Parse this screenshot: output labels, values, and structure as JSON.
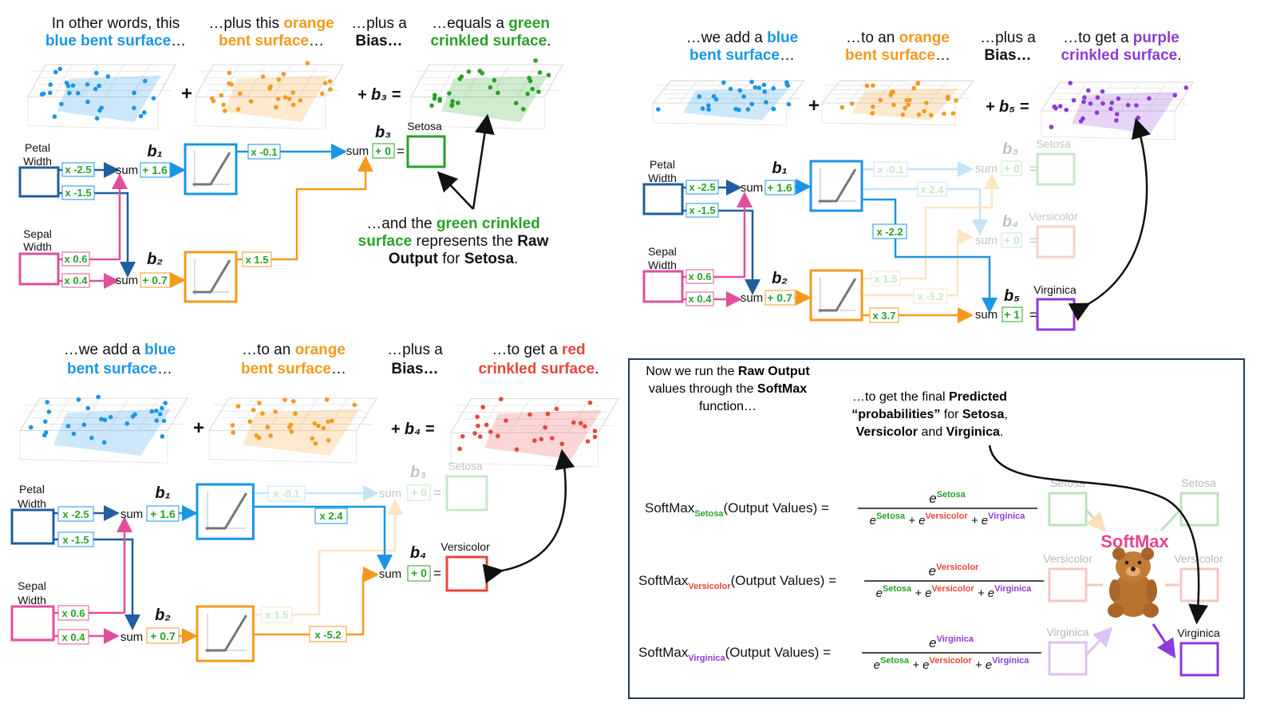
{
  "colors": {
    "blue": "#1a96e6",
    "darkblue": "#1f5fa0",
    "orange": "#f39a1e",
    "pink": "#e0509a",
    "green": "#28a228",
    "red": "#e8463a",
    "purple": "#8e3ad6",
    "softmax": "#e8458c"
  },
  "panel1": {
    "captions": [
      {
        "line1": "In other words, this",
        "line2_color": "blue bent surface",
        "line2_rest": "…"
      },
      {
        "line1_pre": "…plus this ",
        "line1_color": "orange",
        "line2_color": "bent surface",
        "line2_rest": "…"
      },
      {
        "line1": "…plus a",
        "line2": "Bias…"
      },
      {
        "line1_pre": "…equals a ",
        "line1_color": "green",
        "line2_color": "crinkled surface",
        "line2_rest": "."
      }
    ],
    "bias_label": "b₃",
    "output_label": "Setosa",
    "note": {
      "l1_pre": "…and the ",
      "l1_color": "green crinkled",
      "l2_color": "surface",
      "l2_mid": " represents the ",
      "l2_bold": "Raw",
      "l3_bold1": "Output",
      "l3_mid": " for ",
      "l3_bold2": "Setosa",
      "l3_end": "."
    },
    "weights": {
      "pw_top": "x -2.5",
      "pw_bot": "x -1.5",
      "sw_top": "x 0.6",
      "sw_bot": "x 0.4",
      "b1": "+ 1.6",
      "b2": "+ 0.7",
      "top_out": "x -0.1",
      "bot_out": "x 1.5",
      "b3": "+ 0"
    }
  },
  "panel2": {
    "captions": [
      {
        "line1_pre": "…we add a ",
        "line1_color": "blue",
        "line2_color": "bent surface",
        "line2_rest": "…"
      },
      {
        "line1_pre": "…to an ",
        "line1_color": "orange",
        "line2_color": "bent surface",
        "line2_rest": "…"
      },
      {
        "line1": "…plus a",
        "line2": "Bias…"
      },
      {
        "line1_pre": "…to get a ",
        "line1_color": "purple",
        "line2_color": "crinkled surface",
        "line2_rest": "."
      }
    ],
    "bias_label": "b₅",
    "outputs": [
      "Setosa",
      "Versicolor",
      "Virginica"
    ],
    "weights": {
      "pw_top": "x -2.5",
      "pw_bot": "x -1.5",
      "sw_top": "x 0.6",
      "sw_bot": "x 0.4",
      "b1": "+ 1.6",
      "b2": "+ 0.7",
      "t1": "x -0.1",
      "t2": "x 2.4",
      "t3": "x -2.2",
      "o1": "x 1.5",
      "o2": "x -5.2",
      "o3": "x 3.7",
      "b3": "+ 0",
      "b4": "+ 0",
      "b5": "+ 1"
    }
  },
  "panel3": {
    "captions": [
      {
        "line1_pre": "…we add a ",
        "line1_color": "blue",
        "line2_color": "bent surface",
        "line2_rest": "…"
      },
      {
        "line1_pre": "…to an ",
        "line1_color": "orange",
        "line2_color": "bent surface",
        "line2_rest": "…"
      },
      {
        "line1": "…plus a",
        "line2": "Bias…"
      },
      {
        "line1_pre": "…to get a ",
        "line1_color": "red",
        "line2_color": "crinkled surface",
        "line2_rest": "."
      }
    ],
    "bias_label": "b₄",
    "outputs": [
      "Setosa",
      "Versicolor"
    ],
    "weights": {
      "pw_top": "x -2.5",
      "pw_bot": "x -1.5",
      "sw_top": "x 0.6",
      "sw_bot": "x 0.4",
      "b1": "+ 1.6",
      "b2": "+ 0.7",
      "t1": "x -0.1",
      "t2": "x 2.4",
      "o1": "x 1.5",
      "o2": "x -5.2",
      "b3": "+ 0",
      "b4": "+ 0"
    }
  },
  "common": {
    "petal": [
      "Petal",
      "Width"
    ],
    "sepal": [
      "Sepal",
      "Width"
    ],
    "sum": "sum",
    "b1": "b₁",
    "b2": "b₂",
    "b3": "b₃",
    "b4": "b₄",
    "b5": "b₅",
    "plus": "+",
    "equals": "="
  },
  "panel4": {
    "intro": {
      "l1_pre": "Now we run the ",
      "l1_bold": "Raw Output",
      "l2_pre": "values through the ",
      "l2_bold": "SoftMax",
      "l3": "function…"
    },
    "final": {
      "l1_pre": "…to get the final ",
      "l1_bold": "Predicted",
      "l2_bold": "“probabilities”",
      "l2_mid": " for ",
      "l2_bold2": "Setosa",
      ",": ",",
      "l3_bold1": "Versicolor",
      "l3_mid": " and ",
      "l3_bold2": "Virginica",
      "l3_end": "."
    },
    "formulas": [
      {
        "pre": "SoftMax",
        "sub": "Setosa",
        "post": "(Output Values) =",
        "num": "Setosa"
      },
      {
        "pre": "SoftMax",
        "sub": "Versicolor",
        "post": "(Output Values) =",
        "num": "Versicolor"
      },
      {
        "pre": "SoftMax",
        "sub": "Virginica",
        "post": "(Output Values) =",
        "num": "Virginica"
      }
    ],
    "e": "e",
    "den": {
      "s": "Setosa",
      "v": "Versicolor",
      "g": "Virginica",
      "plus": " + "
    },
    "softmax_label": "SoftMax",
    "left_labels": [
      "Setosa",
      "Versicolor",
      "Virginica"
    ],
    "right_labels": [
      "Setosa",
      "Versicolor",
      "Virginica"
    ]
  }
}
